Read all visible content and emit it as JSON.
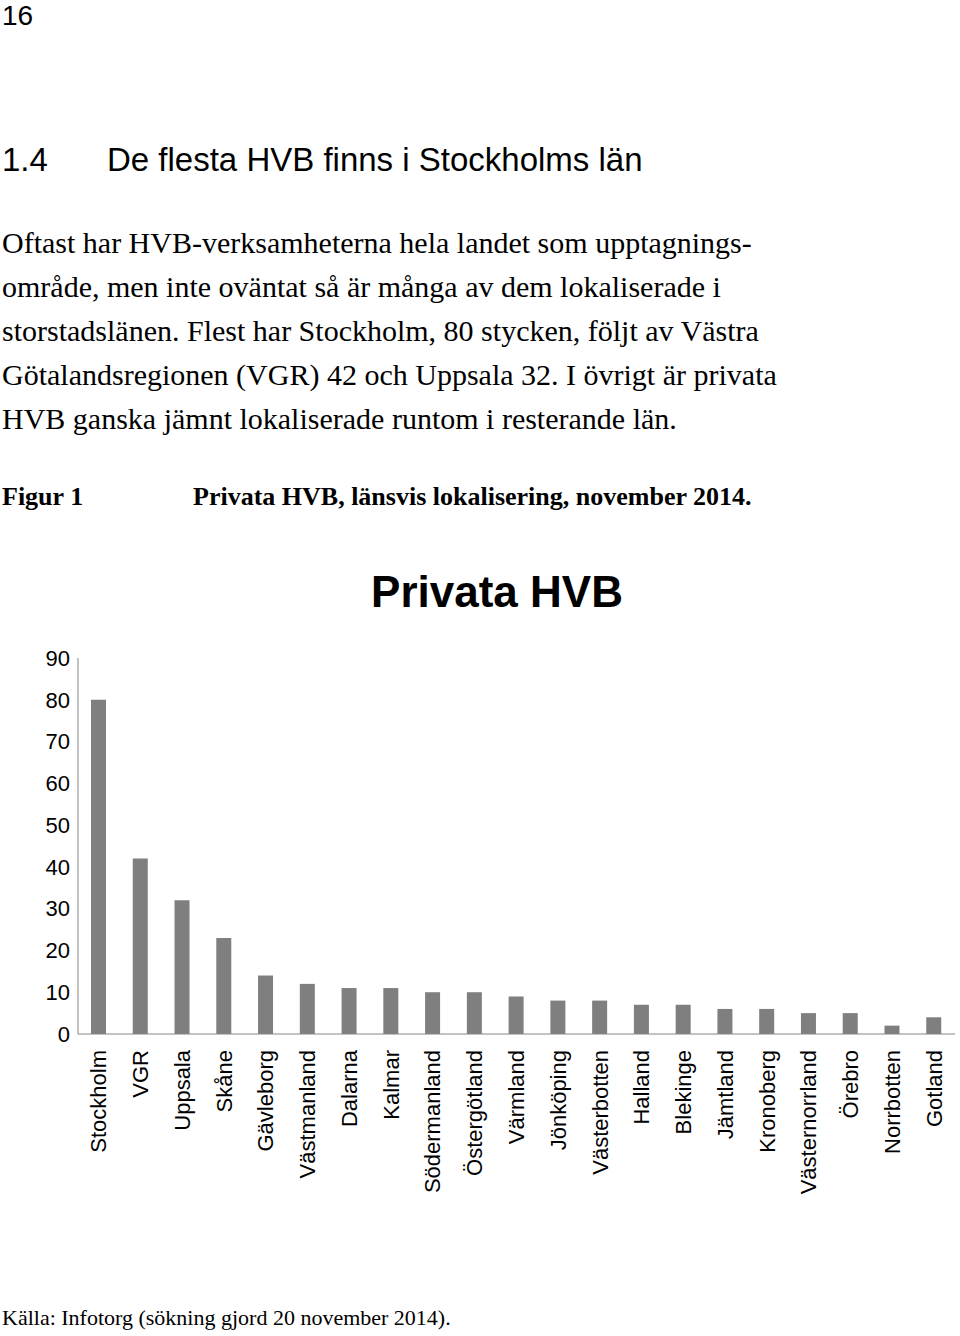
{
  "page_number": "16",
  "section_number": "1.4",
  "heading": "De flesta HVB finns i Stockholms län",
  "paragraph_lines": [
    "Oftast har HVB-verksamheterna hela landet som upptagnings-",
    "område, men inte oväntat så är många av dem lokaliserade i",
    "storstadslänen. Flest har Stockholm, 80 stycken, följt av Västra",
    "Götalandsregionen (VGR) 42 och Uppsala 32. I övrigt är privata",
    "HVB ganska jämnt lokaliserade runtom i resterande län."
  ],
  "figure_label": "Figur 1",
  "figure_caption": "Privata HVB, länsvis lokalisering, november 2014.",
  "source": "Källa: Infotorg (sökning gjord 20 november 2014).",
  "chart_data": {
    "type": "bar",
    "title": "Privata HVB",
    "categories": [
      "Stockholm",
      "VGR",
      "Uppsala",
      "Skåne",
      "Gävleborg",
      "Västmanland",
      "Dalarna",
      "Kalmar",
      "Södermanland",
      "Östergötland",
      "Värmland",
      "Jönköping",
      "Västerbotten",
      "Halland",
      "Blekinge",
      "Jämtland",
      "Kronoberg",
      "Västernorrland",
      "Örebro",
      "Norrbotten",
      "Gotland"
    ],
    "values": [
      80,
      42,
      32,
      23,
      14,
      12,
      11,
      11,
      10,
      10,
      9,
      8,
      8,
      7,
      7,
      6,
      6,
      5,
      5,
      2,
      4
    ],
    "color": "#7f7f7f",
    "ylim": [
      0,
      90
    ],
    "yticks": [
      0,
      10,
      20,
      30,
      40,
      50,
      60,
      70,
      80,
      90
    ],
    "grid": false
  }
}
